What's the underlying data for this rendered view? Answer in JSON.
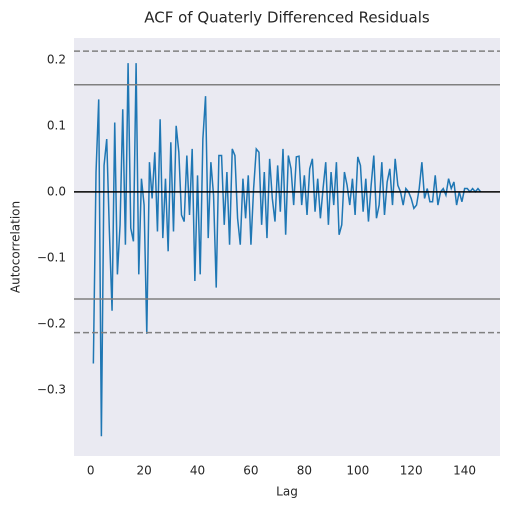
{
  "chart_data": {
    "type": "line",
    "title": "ACF of Quaterly Differenced Residuals",
    "x_label": "Lag",
    "y_label": "Autocorrelation",
    "color": "#1f77b4",
    "background": "#eaeaf2",
    "grid": false,
    "x": [
      1,
      2,
      3,
      4,
      5,
      6,
      7,
      8,
      9,
      10,
      11,
      12,
      13,
      14,
      15,
      16,
      17,
      18,
      19,
      20,
      21,
      22,
      23,
      24,
      25,
      26,
      27,
      28,
      29,
      30,
      31,
      32,
      33,
      34,
      35,
      36,
      37,
      38,
      39,
      40,
      41,
      42,
      43,
      44,
      45,
      46,
      47,
      48,
      49,
      50,
      51,
      52,
      53,
      54,
      55,
      56,
      57,
      58,
      59,
      60,
      61,
      62,
      63,
      64,
      65,
      66,
      67,
      68,
      69,
      70,
      71,
      72,
      73,
      74,
      75,
      76,
      77,
      78,
      79,
      80,
      81,
      82,
      83,
      84,
      85,
      86,
      87,
      88,
      89,
      90,
      91,
      92,
      93,
      94,
      95,
      96,
      97,
      98,
      99,
      100,
      101,
      102,
      103,
      104,
      105,
      106,
      107,
      108,
      109,
      110,
      111,
      112,
      113,
      114,
      115,
      116,
      117,
      118,
      119,
      120,
      121,
      122,
      123,
      124,
      125,
      126,
      127,
      128,
      129,
      130,
      131,
      132,
      133,
      134,
      135,
      136,
      137,
      138,
      139,
      140,
      141,
      142,
      143,
      144,
      145,
      146
    ],
    "values": [
      -0.26,
      0.03,
      0.14,
      -0.37,
      0.04,
      0.08,
      -0.06,
      -0.18,
      0.105,
      -0.125,
      -0.05,
      0.125,
      -0.08,
      0.195,
      -0.055,
      -0.075,
      0.195,
      -0.125,
      0.02,
      -0.02,
      -0.215,
      0.045,
      -0.01,
      0.06,
      -0.06,
      0.11,
      -0.07,
      0.02,
      -0.09,
      0.075,
      -0.06,
      0.1,
      0.06,
      -0.035,
      -0.045,
      0.055,
      -0.035,
      0.065,
      -0.135,
      0.025,
      -0.125,
      0.08,
      0.145,
      -0.07,
      0.045,
      -0.005,
      -0.145,
      0.055,
      0.055,
      -0.05,
      0.03,
      -0.08,
      0.065,
      0.055,
      -0.04,
      -0.08,
      0.02,
      -0.04,
      0.025,
      -0.08,
      0.005,
      0.065,
      0.06,
      -0.05,
      0.03,
      -0.07,
      0.05,
      -0.01,
      -0.045,
      0.04,
      -0.03,
      0.065,
      -0.065,
      0.055,
      0.035,
      -0.02,
      0.053,
      0.054,
      -0.02,
      0.025,
      -0.035,
      0.035,
      0.05,
      -0.03,
      0.02,
      -0.04,
      0.005,
      0.045,
      -0.05,
      0.03,
      -0.02,
      0.045,
      -0.065,
      -0.05,
      0.03,
      0.01,
      -0.02,
      0.02,
      -0.035,
      0.053,
      0.04,
      -0.03,
      0.02,
      -0.045,
      0.01,
      0.055,
      -0.04,
      -0.02,
      0.045,
      -0.035,
      0.015,
      0.035,
      -0.02,
      0.05,
      0.01,
      0.0,
      -0.02,
      0.005,
      0.0,
      -0.01,
      -0.025,
      -0.02,
      0.005,
      0.045,
      -0.01,
      0.005,
      -0.015,
      -0.015,
      0.025,
      -0.02,
      0.0,
      0.005,
      -0.005,
      0.02,
      0.005,
      0.015,
      -0.02,
      0.0,
      -0.015,
      0.005,
      0.005,
      0.0,
      0.005,
      0.0,
      0.005,
      0.0
    ],
    "hlines": [
      {
        "value": 0.2132,
        "color": "#808080",
        "dash": true
      },
      {
        "value": 0.1622,
        "color": "#808080",
        "dash": false
      },
      {
        "value": 0,
        "color": "#000000",
        "dash": false
      },
      {
        "value": -0.1622,
        "color": "#808080",
        "dash": false
      },
      {
        "value": -0.2132,
        "color": "#808080",
        "dash": true
      }
    ],
    "xlim": [
      -6.25,
      153.25
    ],
    "ylim": [
      -0.4,
      0.233
    ],
    "xticks": [
      0,
      20,
      40,
      60,
      80,
      100,
      120,
      140
    ],
    "yticks": [
      {
        "value": -0.3,
        "label": "−0.3"
      },
      {
        "value": -0.2,
        "label": "−0.2"
      },
      {
        "value": -0.1,
        "label": "−0.1"
      },
      {
        "value": 0,
        "label": "0.0"
      },
      0.1,
      0.2
    ]
  }
}
